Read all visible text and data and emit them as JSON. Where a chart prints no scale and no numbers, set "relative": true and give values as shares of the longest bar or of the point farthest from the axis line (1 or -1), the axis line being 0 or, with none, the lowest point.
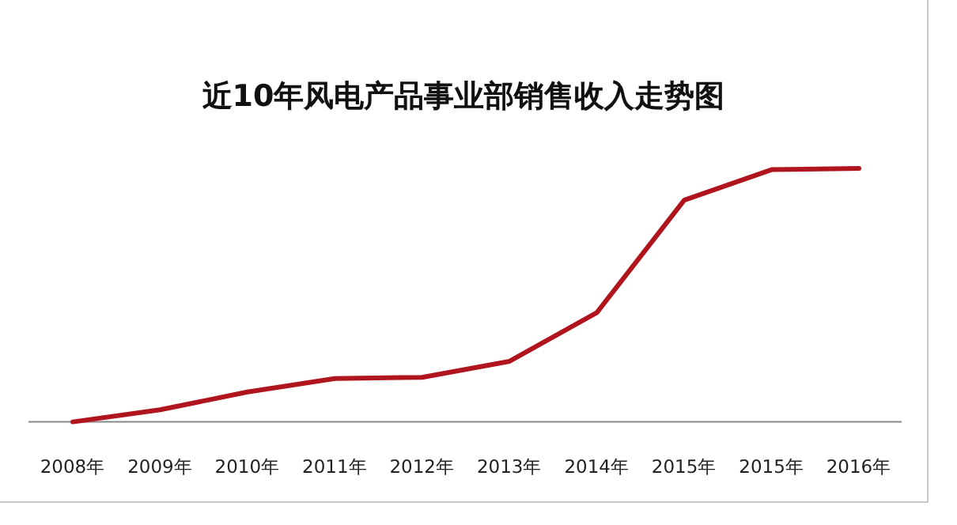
{
  "chart_data": {
    "type": "line",
    "title": "近10年风电产品事业部销售收入走势图",
    "categories": [
      "2008年",
      "2009年",
      "2010年",
      "2011年",
      "2012年",
      "2013年",
      "2014年",
      "2015年",
      "2015年",
      "2016年"
    ],
    "values": [
      0,
      0.048,
      0.118,
      0.171,
      0.176,
      0.239,
      0.431,
      0.875,
      0.995,
      1
    ],
    "color": "#b0141c",
    "relative": true
  }
}
